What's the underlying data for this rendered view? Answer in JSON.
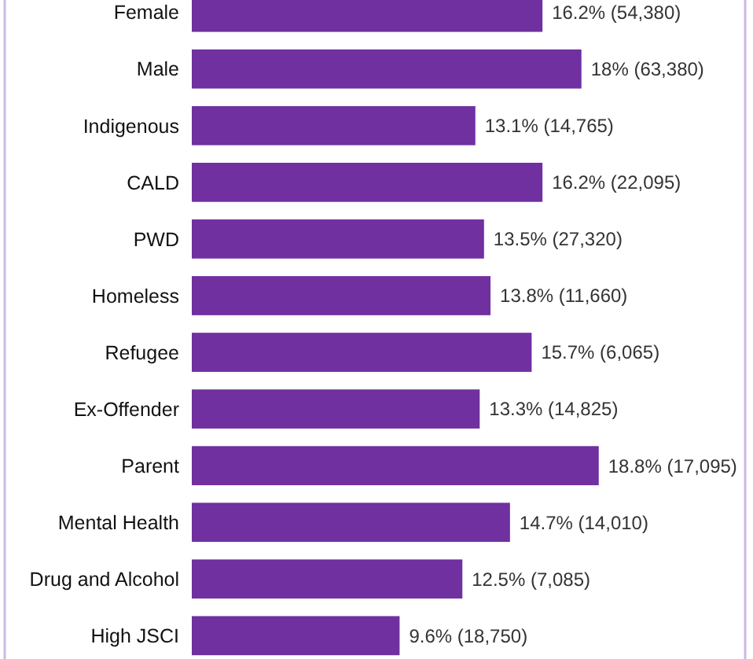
{
  "chart_data": {
    "type": "bar",
    "orientation": "horizontal",
    "categories": [
      "Female",
      "Male",
      "Indigenous",
      "CALD",
      "PWD",
      "Homeless",
      "Refugee",
      "Ex-Offender",
      "Parent",
      "Mental Health",
      "Drug and Alcohol",
      "High JSCI"
    ],
    "values": [
      16.2,
      18,
      13.1,
      16.2,
      13.5,
      13.8,
      15.7,
      13.3,
      18.8,
      14.7,
      12.5,
      9.6
    ],
    "value_labels": [
      "16.2% (54,380)",
      "18% (63,380)",
      "13.1% (14,765)",
      "16.2% (22,095)",
      "13.5% (27,320)",
      "13.8% (11,660)",
      "15.7% (6,065)",
      "13.3% (14,825)",
      "18.8% (17,095)",
      "14.7% (14,010)",
      "12.5% (7,085)",
      "9.6% (18,750)"
    ],
    "color": "#7030a0"
  }
}
